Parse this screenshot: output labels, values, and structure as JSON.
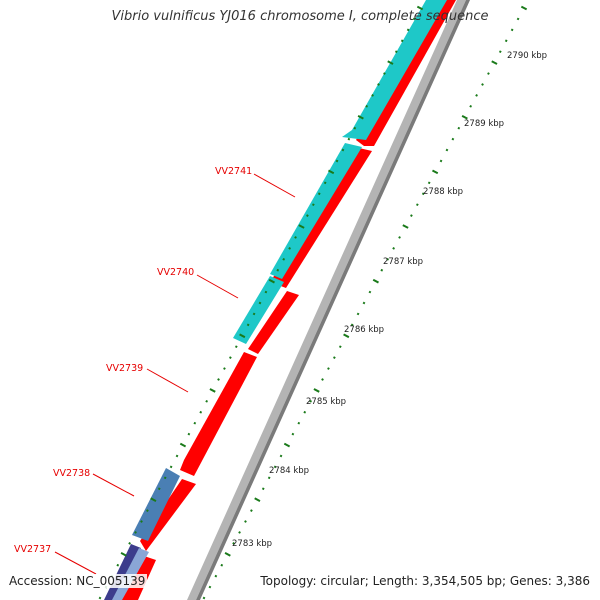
{
  "title": "Vibrio vulnificus YJ016 chromosome I, complete sequence",
  "footer": {
    "accession": "Accession: NC_005139",
    "summary": "Topology: circular; Length: 3,354,505 bp; Genes: 3,386"
  },
  "colors": {
    "cds_forward": "#ff0000",
    "cds_reverse_cyan": "#1ec8c8",
    "cds_reverse_steel": "#4a7fb4",
    "cds_reverse_navy": "#3c3c8c",
    "backbone": "#8c8c8c",
    "tick": "#1a7a1a",
    "label": "#e60000"
  },
  "genes": [
    {
      "name": "VV2741"
    },
    {
      "name": "VV2740"
    },
    {
      "name": "VV2739"
    },
    {
      "name": "VV2738"
    },
    {
      "name": "VV2737"
    }
  ],
  "scale_labels": [
    "2790 kbp",
    "2789 kbp",
    "2788 kbp",
    "2787 kbp",
    "2786 kbp",
    "2785 kbp",
    "2784 kbp",
    "2783 kbp"
  ]
}
